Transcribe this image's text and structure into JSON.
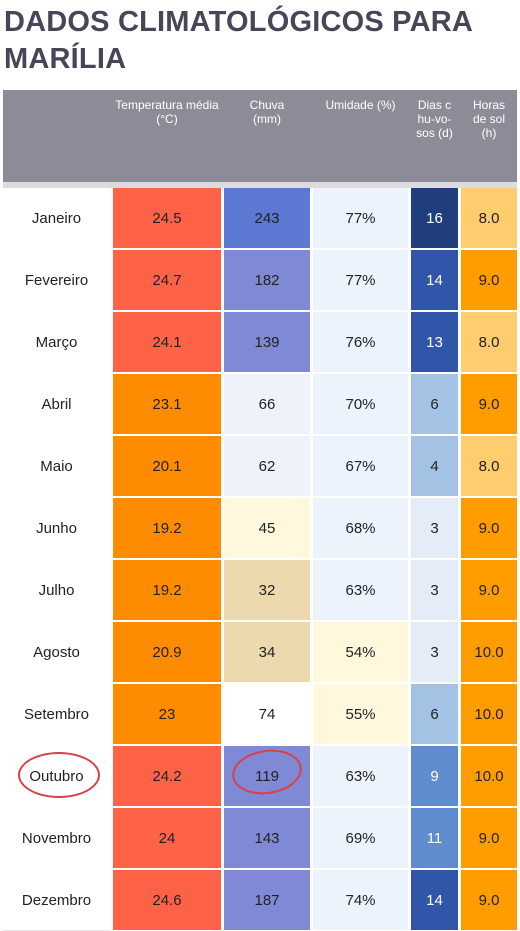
{
  "title": "DADOS CLIMATOLÓGICOS PARA MARÍLIA",
  "headers": {
    "temp": "Temperatura média (°C)",
    "rain": "Chuva (mm)",
    "humidity": "Umidade (%)",
    "rain_days": "Dias chu-vo-sos (d)",
    "sun": "Horas de sol (h)"
  },
  "rows": [
    {
      "month": "Janeiro",
      "temp": "24.5",
      "rain": "243",
      "humidity": "77%",
      "days": "16",
      "sun": "8.0"
    },
    {
      "month": "Fevereiro",
      "temp": "24.7",
      "rain": "182",
      "humidity": "77%",
      "days": "14",
      "sun": "9.0"
    },
    {
      "month": "Março",
      "temp": "24.1",
      "rain": "139",
      "humidity": "76%",
      "days": "13",
      "sun": "8.0"
    },
    {
      "month": "Abril",
      "temp": "23.1",
      "rain": "66",
      "humidity": "70%",
      "days": "6",
      "sun": "9.0"
    },
    {
      "month": "Maio",
      "temp": "20.1",
      "rain": "62",
      "humidity": "67%",
      "days": "4",
      "sun": "8.0"
    },
    {
      "month": "Junho",
      "temp": "19.2",
      "rain": "45",
      "humidity": "68%",
      "days": "3",
      "sun": "9.0"
    },
    {
      "month": "Julho",
      "temp": "19.2",
      "rain": "32",
      "humidity": "63%",
      "days": "3",
      "sun": "9.0"
    },
    {
      "month": "Agosto",
      "temp": "20.9",
      "rain": "34",
      "humidity": "54%",
      "days": "3",
      "sun": "10.0"
    },
    {
      "month": "Setembro",
      "temp": "23",
      "rain": "74",
      "humidity": "55%",
      "days": "6",
      "sun": "10.0"
    },
    {
      "month": "Outubro",
      "temp": "24.2",
      "rain": "119",
      "humidity": "63%",
      "days": "9",
      "sun": "10.0"
    },
    {
      "month": "Novembro",
      "temp": "24",
      "rain": "143",
      "humidity": "69%",
      "days": "11",
      "sun": "9.0"
    },
    {
      "month": "Dezembro",
      "temp": "24.6",
      "rain": "187",
      "humidity": "74%",
      "days": "14",
      "sun": "9.0"
    }
  ],
  "colors": {
    "header_bg": "#8e8b98",
    "title": "#4a4458",
    "temp_warm": "#ff6347",
    "temp_mild": "#ff8c00",
    "rain_very_high": "#5b78d3",
    "rain_high": "#8089d6",
    "rain_low_blue": "#eef3fb",
    "rain_cream": "#fff8dc",
    "rain_tan": "#edd9ae",
    "rain_white": "#ffffff",
    "humidity_bg": "#ecf3fc",
    "humidity_cream": "#fff8dc",
    "days_darkest": "#203e7e",
    "days_dark": "#3055a9",
    "days_mid": "#5f8ccf",
    "days_light": "#a3c2e4",
    "days_lightest": "#e4edf7",
    "sun_light": "#ffcc6e",
    "sun_orange": "#ff9d00",
    "annotation": "#d9404a"
  },
  "annotated": {
    "month": "Outubro",
    "columns": [
      "month",
      "rain"
    ]
  }
}
